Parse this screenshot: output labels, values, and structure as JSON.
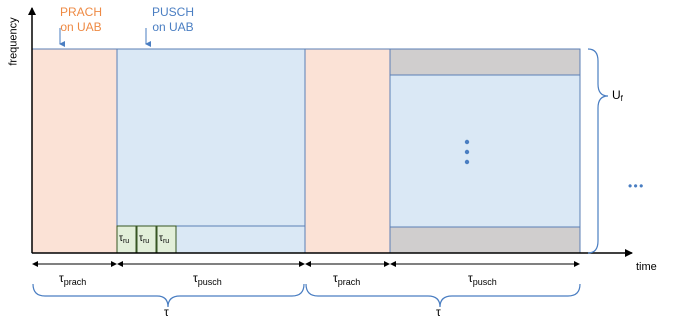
{
  "annotations": {
    "prach": {
      "line1": "PRACH",
      "line2": "on UAB",
      "color": "#ee8a44"
    },
    "pusch": {
      "line1": "PUSCH",
      "line2": "on UAB",
      "color": "#4a7ec2"
    }
  },
  "axes": {
    "y_label": "frequency",
    "x_label": "time"
  },
  "bandwidth_label": {
    "main": "U",
    "sub": "f"
  },
  "ru_label": {
    "main": "τ",
    "sub": "ru"
  },
  "durations": {
    "tau_prach": {
      "main": "τ",
      "sub": "prach"
    },
    "tau_pusch": {
      "main": "τ",
      "sub": "pusch"
    }
  },
  "period_label": "τ",
  "continuation": "• • •",
  "colors": {
    "prach_fill": "#fbe2d6",
    "pusch_fill": "#dae8f5",
    "ru_fill": "#e2efd9",
    "guard_fill": "#d0cece",
    "accent_blue": "#4a7ec2",
    "border_blue": "#5b7fb5"
  }
}
